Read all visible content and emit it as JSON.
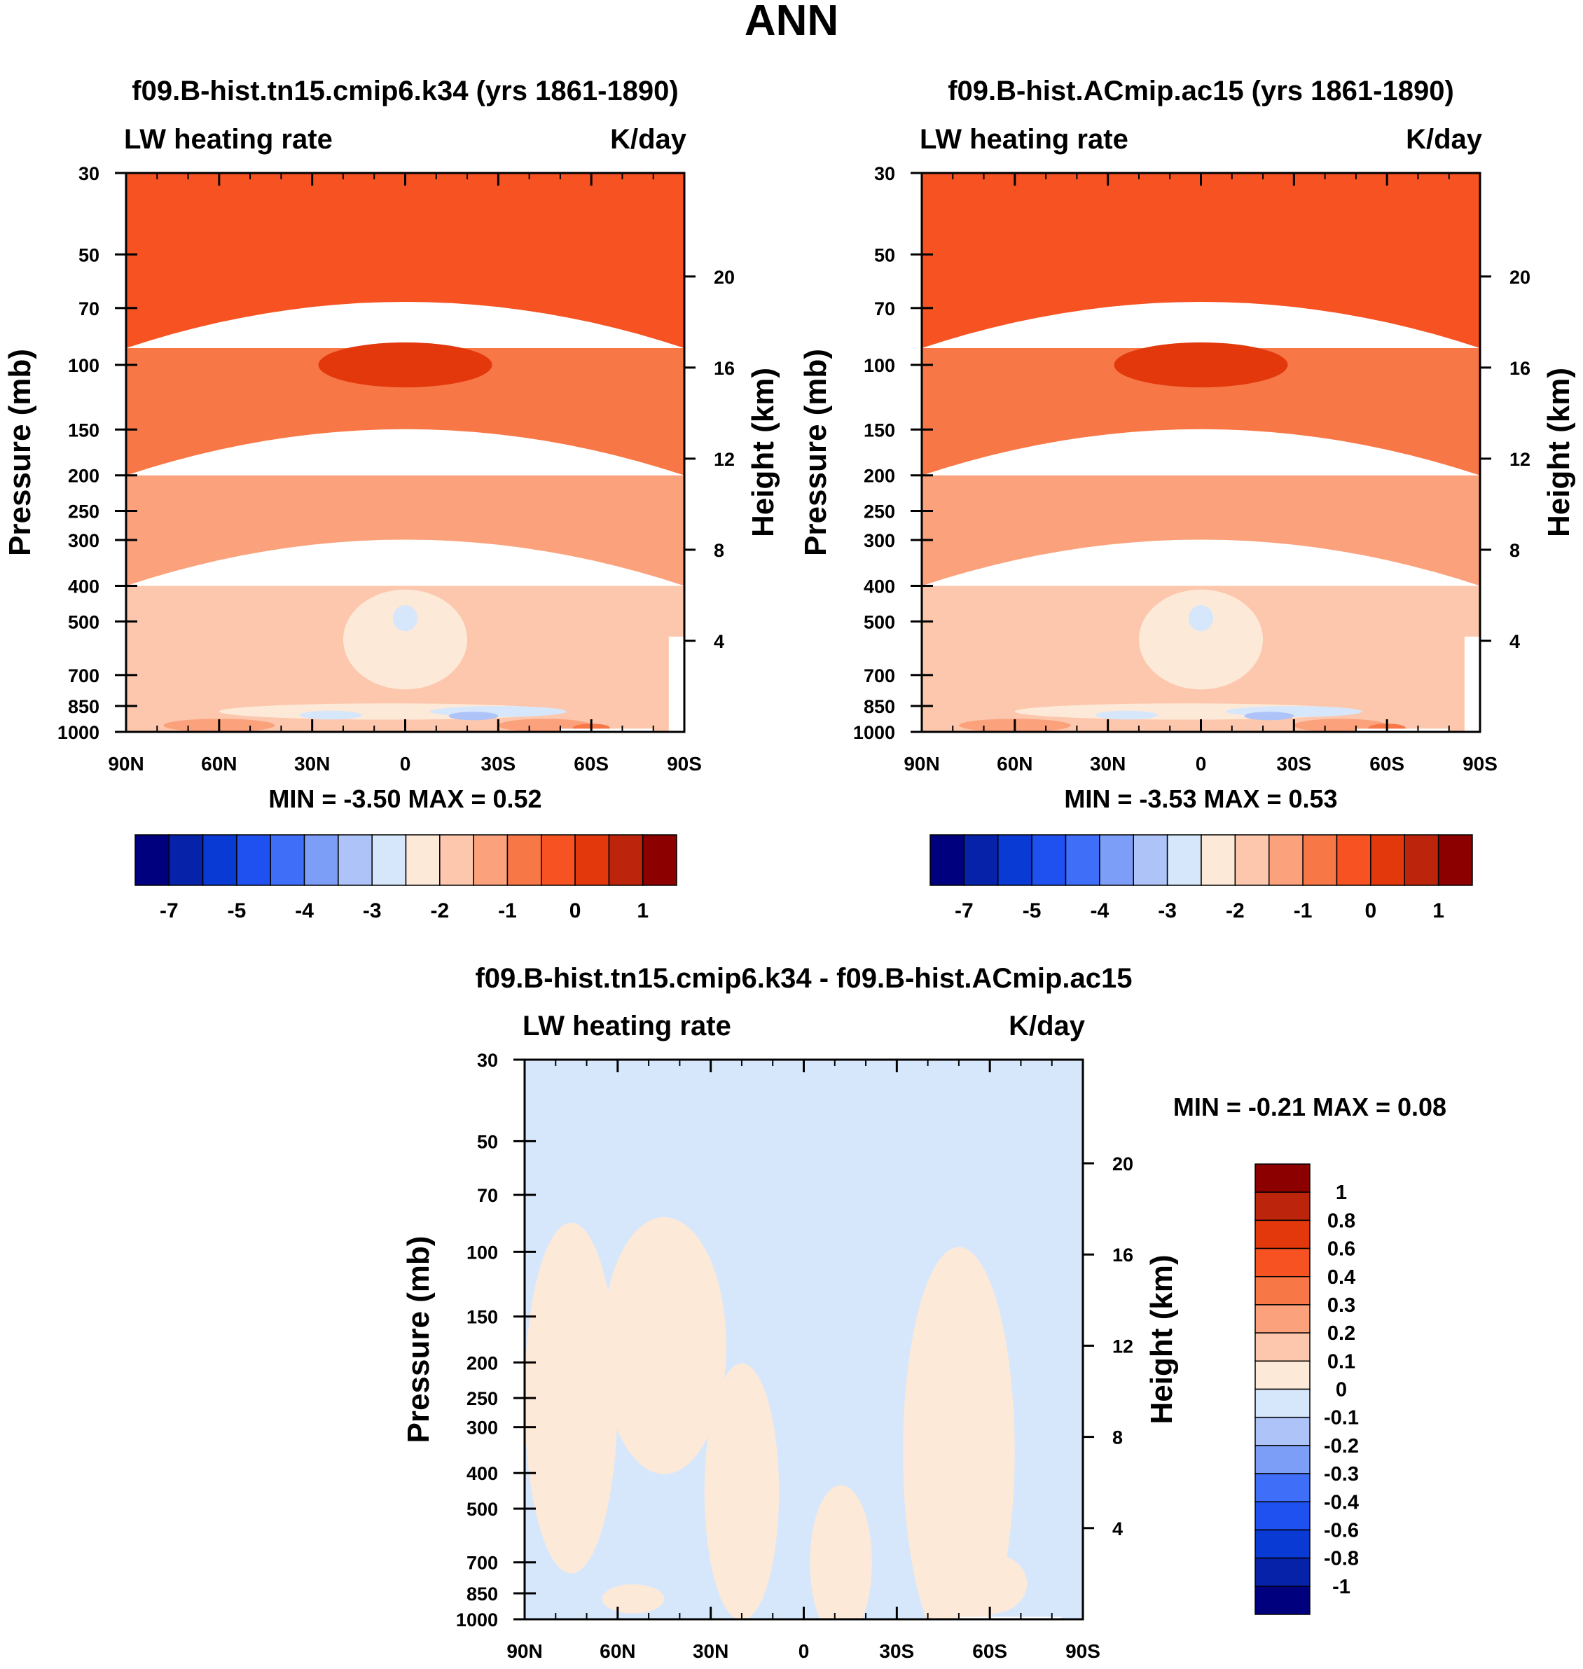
{
  "figure_title": "ANN",
  "colors": {
    "full_fill": [
      "#00007f",
      "#0622a8",
      "#0a3ad4",
      "#1f50f0",
      "#3f6ef8",
      "#7d9ef7",
      "#aec4f9",
      "#d7e7fb",
      "#fde9d8",
      "#fcc7ad",
      "#fba27d",
      "#f87747",
      "#f65222",
      "#e2380c",
      "#bd240c",
      "#8c0000"
    ],
    "diff_fill": [
      "#00007f",
      "#0622a8",
      "#0a3ad4",
      "#1f50f0",
      "#3f6ef8",
      "#7d9ef7",
      "#aec4f9",
      "#d7e7fb",
      "#fde9d8",
      "#fcc7ad",
      "#fba27d",
      "#f87747",
      "#f65222",
      "#e2380c",
      "#bd240c",
      "#8c0000"
    ],
    "missing": "#ffffff"
  },
  "chart_data": [
    {
      "id": "panel1",
      "type": "heatmap",
      "title": "f09.B-hist.tn15.cmip6.k34 (yrs 1861-1890)",
      "left_label": "LW heating rate",
      "right_label": "K/day",
      "ylabel": "Pressure (mb)",
      "y2label": "Height (km)",
      "x_ticks": [
        "90N",
        "60N",
        "30N",
        "0",
        "30S",
        "60S",
        "90S"
      ],
      "x_range": [
        90,
        -90
      ],
      "y_ticks": [
        30,
        50,
        70,
        100,
        150,
        200,
        250,
        300,
        400,
        500,
        700,
        850,
        1000
      ],
      "y_range": [
        30,
        1000
      ],
      "y2_ticks": [
        20,
        16,
        12,
        8,
        4
      ],
      "stats": "MIN =  -3.50   MAX =    0.52",
      "colorbar_labels": [
        "-7",
        "-5",
        "-4",
        "-3",
        "-2",
        "-1",
        "0",
        "1"
      ],
      "fill_bands": [
        {
          "color_index": 12,
          "top": 30,
          "bottom": 90
        },
        {
          "color_index": 11,
          "top": 90,
          "bottom": 200
        },
        {
          "color_index": 10,
          "top": 200,
          "bottom": 400
        },
        {
          "color_index": 9,
          "top": 400,
          "bottom": 1000
        }
      ],
      "fill_blobs": [
        {
          "color_index": 13,
          "lat": 0,
          "p": 100,
          "dlat": 28,
          "dp": 14
        },
        {
          "color_index": 8,
          "lat": 0,
          "p": 560,
          "dlat": 20,
          "dp": 170
        },
        {
          "color_index": 7,
          "lat": 0,
          "p": 490,
          "dlat": 4,
          "dp": 40
        },
        {
          "color_index": 8,
          "lat": 5,
          "p": 880,
          "dlat": 55,
          "dp": 45
        },
        {
          "color_index": 7,
          "lat": 24,
          "p": 900,
          "dlat": 10,
          "dp": 25
        },
        {
          "color_index": 7,
          "lat": -30,
          "p": 880,
          "dlat": 22,
          "dp": 30
        },
        {
          "color_index": 6,
          "lat": -22,
          "p": 905,
          "dlat": 8,
          "dp": 14
        },
        {
          "color_index": 10,
          "lat": 60,
          "p": 960,
          "dlat": 18,
          "dp": 40
        },
        {
          "color_index": 10,
          "lat": -45,
          "p": 960,
          "dlat": 15,
          "dp": 40
        },
        {
          "color_index": 11,
          "lat": -60,
          "p": 975,
          "dlat": 6,
          "dp": 12
        }
      ],
      "missing_regions": [
        {
          "lat0": -50,
          "lat1": -80,
          "p0": 980,
          "p1": 1000
        },
        {
          "lat0": -85,
          "lat1": -90,
          "p0": 550,
          "p1": 1000
        }
      ]
    },
    {
      "id": "panel2",
      "type": "heatmap",
      "title": "f09.B-hist.ACmip.ac15 (yrs 1861-1890)",
      "left_label": "LW heating rate",
      "right_label": "K/day",
      "ylabel": "Pressure (mb)",
      "y2label": "Height (km)",
      "x_ticks": [
        "90N",
        "60N",
        "30N",
        "0",
        "30S",
        "60S",
        "90S"
      ],
      "x_range": [
        90,
        -90
      ],
      "y_ticks": [
        30,
        50,
        70,
        100,
        150,
        200,
        250,
        300,
        400,
        500,
        700,
        850,
        1000
      ],
      "y_range": [
        30,
        1000
      ],
      "y2_ticks": [
        20,
        16,
        12,
        8,
        4
      ],
      "stats": "MIN =  -3.53   MAX =    0.53",
      "colorbar_labels": [
        "-7",
        "-5",
        "-4",
        "-3",
        "-2",
        "-1",
        "0",
        "1"
      ],
      "fill_bands": [
        {
          "color_index": 12,
          "top": 30,
          "bottom": 90
        },
        {
          "color_index": 11,
          "top": 90,
          "bottom": 200
        },
        {
          "color_index": 10,
          "top": 200,
          "bottom": 400
        },
        {
          "color_index": 9,
          "top": 400,
          "bottom": 1000
        }
      ],
      "fill_blobs": [
        {
          "color_index": 13,
          "lat": 0,
          "p": 100,
          "dlat": 28,
          "dp": 14
        },
        {
          "color_index": 8,
          "lat": 0,
          "p": 560,
          "dlat": 20,
          "dp": 170
        },
        {
          "color_index": 7,
          "lat": 0,
          "p": 490,
          "dlat": 4,
          "dp": 40
        },
        {
          "color_index": 8,
          "lat": 5,
          "p": 880,
          "dlat": 55,
          "dp": 45
        },
        {
          "color_index": 7,
          "lat": 24,
          "p": 900,
          "dlat": 10,
          "dp": 25
        },
        {
          "color_index": 7,
          "lat": -30,
          "p": 880,
          "dlat": 22,
          "dp": 30
        },
        {
          "color_index": 6,
          "lat": -22,
          "p": 905,
          "dlat": 8,
          "dp": 14
        },
        {
          "color_index": 10,
          "lat": 60,
          "p": 960,
          "dlat": 18,
          "dp": 40
        },
        {
          "color_index": 10,
          "lat": -45,
          "p": 960,
          "dlat": 15,
          "dp": 40
        },
        {
          "color_index": 11,
          "lat": -60,
          "p": 975,
          "dlat": 6,
          "dp": 12
        }
      ],
      "missing_regions": [
        {
          "lat0": -50,
          "lat1": -80,
          "p0": 980,
          "p1": 1000
        },
        {
          "lat0": -85,
          "lat1": -90,
          "p0": 550,
          "p1": 1000
        }
      ]
    },
    {
      "id": "panel3",
      "type": "heatmap",
      "title": "f09.B-hist.tn15.cmip6.k34 - f09.B-hist.ACmip.ac15",
      "left_label": "LW heating rate",
      "right_label": "K/day",
      "ylabel": "Pressure (mb)",
      "y2label": "Height (km)",
      "x_ticks": [
        "90N",
        "60N",
        "30N",
        "0",
        "30S",
        "60S",
        "90S"
      ],
      "x_range": [
        90,
        -90
      ],
      "y_ticks": [
        30,
        50,
        70,
        100,
        150,
        200,
        250,
        300,
        400,
        500,
        700,
        850,
        1000
      ],
      "y_range": [
        30,
        1000
      ],
      "y2_ticks": [
        20,
        16,
        12,
        8,
        4
      ],
      "stats": "MIN =  -0.21   MAX =    0.08",
      "colorbar_labels": [
        "1",
        "0.8",
        "0.6",
        "0.4",
        "0.3",
        "0.2",
        "0.1",
        "0",
        "-0.1",
        "-0.2",
        "-0.3",
        "-0.4",
        "-0.6",
        "-0.8",
        "-1"
      ],
      "fill_bands": [
        {
          "color_index": 7,
          "top": 30,
          "bottom": 1000
        }
      ],
      "fill_blobs": [
        {
          "color_index": 8,
          "lat": 75,
          "p": 250,
          "dlat": 15,
          "dp": 200
        },
        {
          "color_index": 8,
          "lat": 45,
          "p": 180,
          "dlat": 20,
          "dp": 120
        },
        {
          "color_index": 8,
          "lat": 20,
          "p": 450,
          "dlat": 12,
          "dp": 300
        },
        {
          "color_index": 8,
          "lat": -12,
          "p": 700,
          "dlat": 10,
          "dp": 320
        },
        {
          "color_index": 8,
          "lat": -50,
          "p": 350,
          "dlat": 18,
          "dp": 300
        },
        {
          "color_index": 8,
          "lat": -60,
          "p": 800,
          "dlat": 12,
          "dp": 150
        },
        {
          "color_index": 8,
          "lat": 55,
          "p": 880,
          "dlat": 10,
          "dp": 80
        }
      ],
      "missing_regions": [
        {
          "lat0": -50,
          "lat1": -83,
          "p0": 985,
          "p1": 1000
        }
      ]
    }
  ]
}
